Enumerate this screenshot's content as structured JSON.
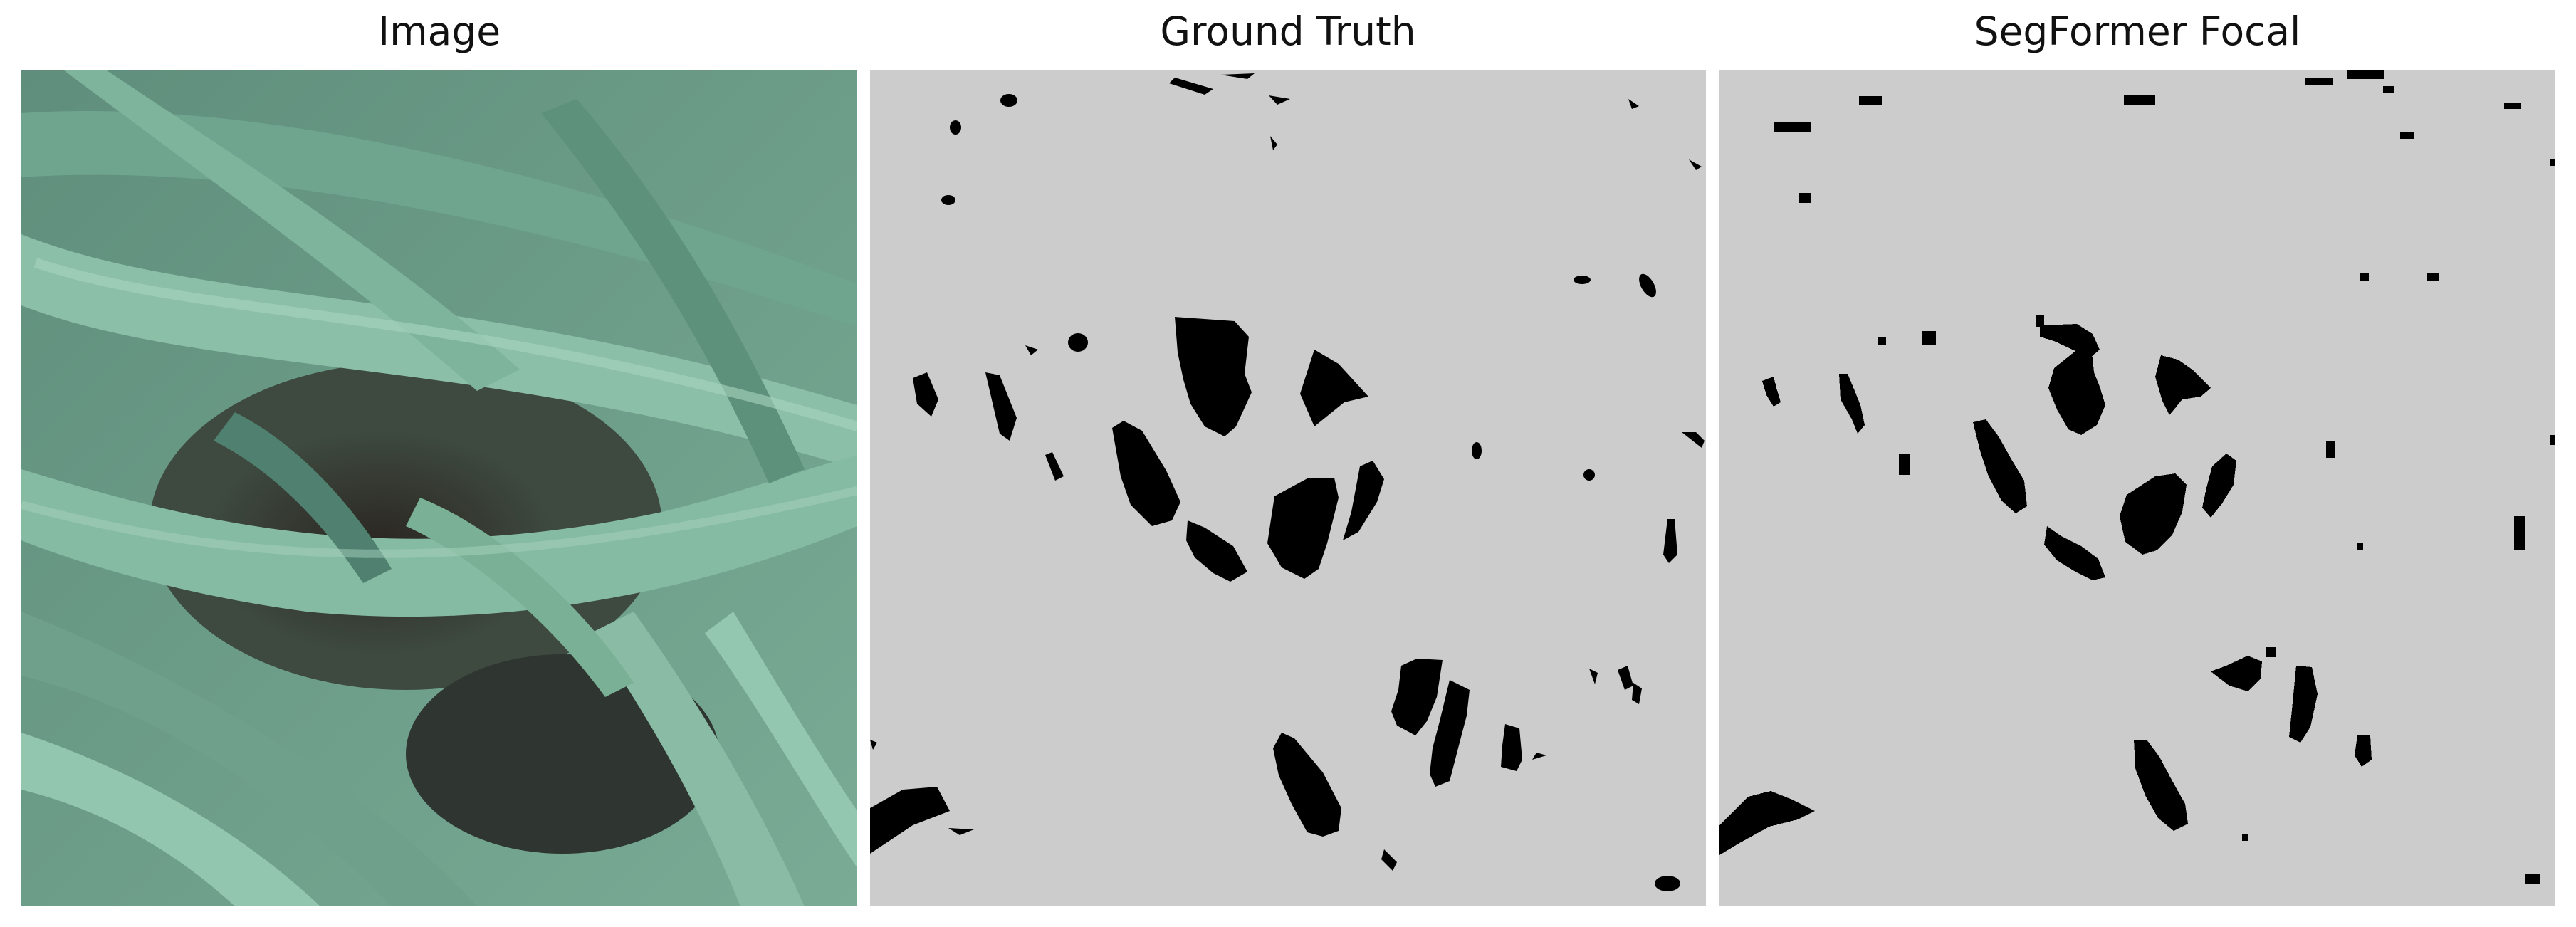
{
  "panels": [
    {
      "id": "image",
      "title": "Image"
    },
    {
      "id": "ground_truth",
      "title": "Ground Truth"
    },
    {
      "id": "segformer_focal",
      "title": "SegFormer Focal"
    }
  ],
  "colors": {
    "mask_background": "#cccccc",
    "mask_foreground": "#000000",
    "leaf_base": "#6f9f8c",
    "leaf_light": "#93c3ad",
    "leaf_dark": "#4e7f6c",
    "soil_dark": "#2f2b26"
  }
}
